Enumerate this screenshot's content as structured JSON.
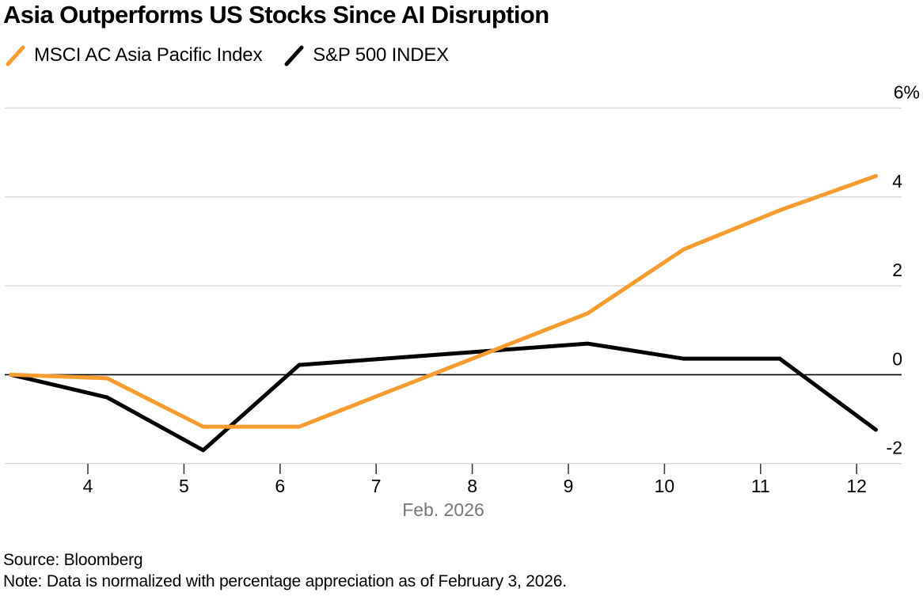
{
  "header": {
    "title": "Asia Outperforms US Stocks Since AI Disruption"
  },
  "legend": {
    "items": [
      {
        "label": "MSCI AC Asia Pacific Index",
        "color": "#F89C30"
      },
      {
        "label": "S&P 500 INDEX",
        "color": "#000000"
      }
    ]
  },
  "chart_data": {
    "type": "line",
    "title": "Asia Outperforms US Stocks Since AI Disruption",
    "xlabel": "Feb. 2026",
    "ylabel": "%",
    "x_unit": "day of February 2026",
    "x": [
      3,
      4,
      5,
      6,
      9,
      10,
      11,
      12
    ],
    "x_ticks": [
      4,
      5,
      6,
      7,
      8,
      9,
      10,
      11,
      12
    ],
    "y_ticks": [
      {
        "value": 6,
        "label": "6%"
      },
      {
        "value": 4,
        "label": "4"
      },
      {
        "value": 2,
        "label": "2"
      },
      {
        "value": 0,
        "label": "0"
      },
      {
        "value": -2,
        "label": "-2"
      }
    ],
    "xlim": [
      3.13,
      12.47
    ],
    "ylim": [
      -2.25,
      6.65
    ],
    "grid": "horizontal",
    "zero_line": true,
    "legend_position": "top-left",
    "series": [
      {
        "name": "S&P 500 INDEX",
        "color": "#000000",
        "values": [
          0,
          -0.51,
          -1.7,
          0.22,
          0.7,
          0.36,
          0.36,
          -1.24
        ]
      },
      {
        "name": "MSCI AC Asia Pacific Index",
        "color": "#F89C30",
        "values": [
          0,
          -0.08,
          -1.17,
          -1.17,
          1.38,
          2.82,
          3.7,
          4.47
        ]
      }
    ],
    "colors": {
      "gridline": "#D8D8D8",
      "zero_line": "#000000",
      "tick": "#3C3C3C",
      "axis_label": "#000000",
      "xlabel_gray": "#767676"
    }
  },
  "footer": {
    "source": "Source: Bloomberg",
    "note": "Note: Data is normalized with percentage appreciation as of February 3, 2026."
  }
}
